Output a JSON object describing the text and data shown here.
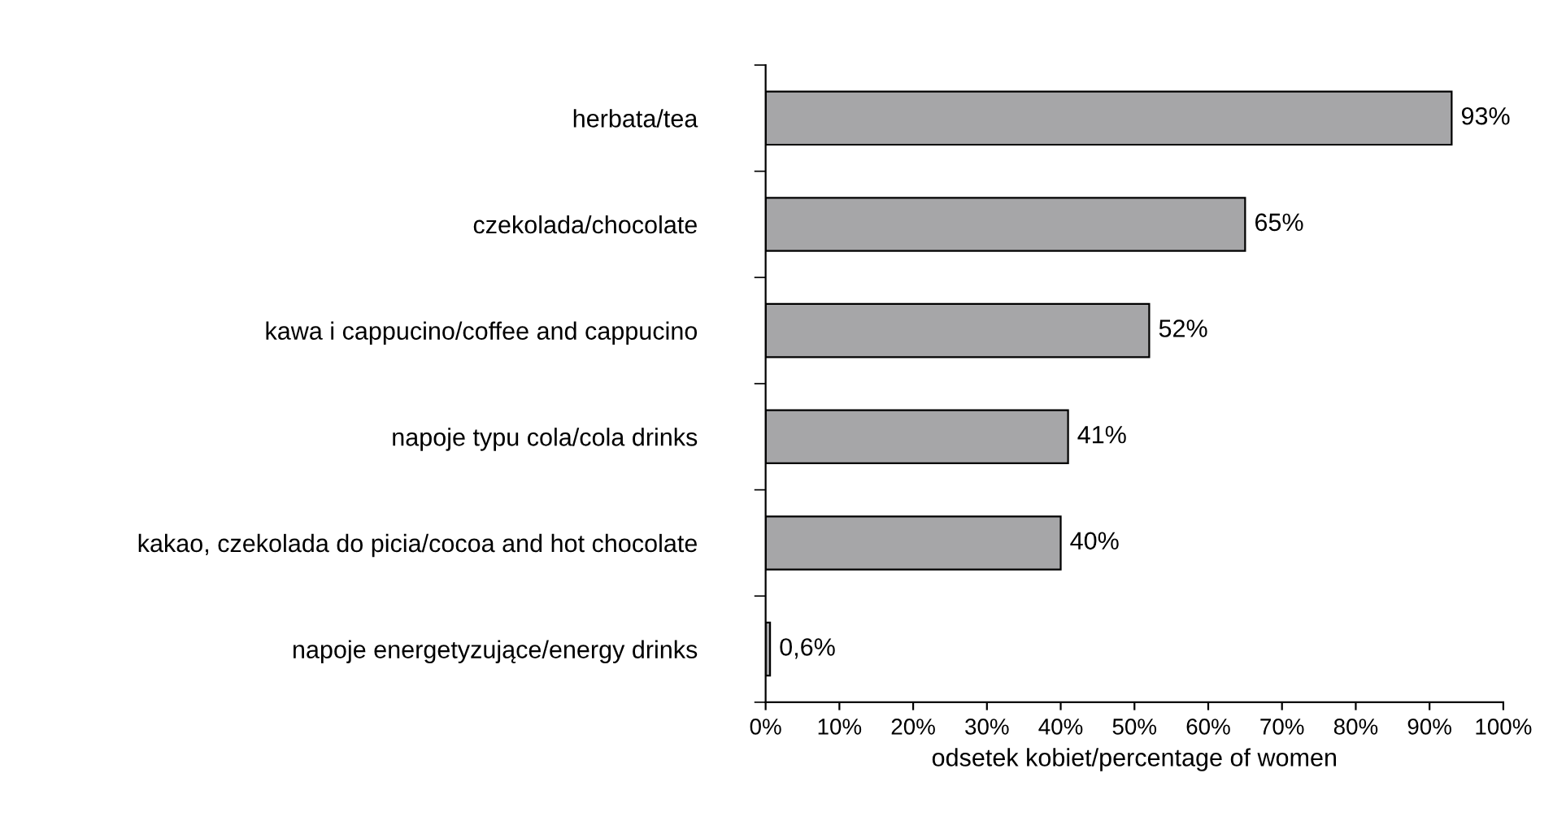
{
  "chart_data": {
    "type": "bar",
    "orientation": "horizontal",
    "categories": [
      "herbata/tea",
      "czekolada/chocolate",
      "kawa i cappucino/coffee and cappucino",
      "napoje typu cola/cola drinks",
      "kakao, czekolada do picia/cocoa and hot chocolate",
      "napoje energetyzujące/energy drinks"
    ],
    "values": [
      93,
      65,
      52,
      41,
      40,
      0.6
    ],
    "value_labels": [
      "93%",
      "65%",
      "52%",
      "41%",
      "40%",
      "0,6%"
    ],
    "color": "#a6a6a8",
    "xlabel": "odsetek kobiet/percentage of women",
    "xlim": [
      0,
      100
    ],
    "xticks": [
      {
        "value": 0,
        "label": "0%"
      },
      {
        "value": 10,
        "label": "10%"
      },
      {
        "value": 20,
        "label": "20%"
      },
      {
        "value": 30,
        "label": "30%"
      },
      {
        "value": 40,
        "label": "40%"
      },
      {
        "value": 50,
        "label": "50%"
      },
      {
        "value": 60,
        "label": "60%"
      },
      {
        "value": 70,
        "label": "70%"
      },
      {
        "value": 80,
        "label": "80%"
      },
      {
        "value": 90,
        "label": "90%"
      },
      {
        "value": 100,
        "label": "100%"
      }
    ],
    "grid": false,
    "legend": false
  }
}
